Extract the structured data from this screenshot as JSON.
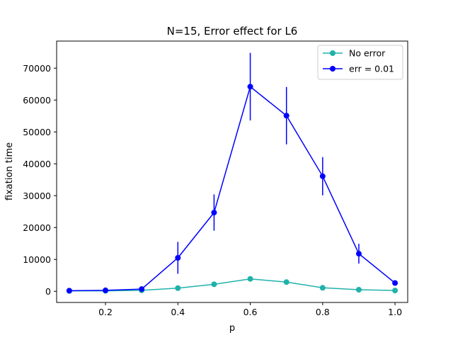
{
  "chart_data": {
    "type": "line",
    "title": "N=15, Error effect for L6",
    "xlabel": "p",
    "ylabel": "fixation time",
    "xlim": [
      0.065,
      1.035
    ],
    "ylim": [
      -3500,
      78500
    ],
    "xticks": [
      0.2,
      0.4,
      0.6,
      0.8,
      1.0
    ],
    "xtick_labels": [
      "0.2",
      "0.4",
      "0.6",
      "0.8",
      "1.0"
    ],
    "yticks": [
      0,
      10000,
      20000,
      30000,
      40000,
      50000,
      60000,
      70000
    ],
    "ytick_labels": [
      "0",
      "10000",
      "20000",
      "30000",
      "40000",
      "50000",
      "60000",
      "70000"
    ],
    "grid": false,
    "legend_position": "top-right",
    "x": [
      0.1,
      0.2,
      0.3,
      0.4,
      0.5,
      0.6,
      0.7,
      0.8,
      0.9,
      1.0
    ],
    "series": [
      {
        "name": "No error",
        "color": "#20b2aa",
        "values": [
          100,
          150,
          300,
          1000,
          2200,
          3900,
          2900,
          1100,
          500,
          250
        ],
        "errors": [
          0,
          0,
          0,
          0,
          0,
          0,
          0,
          0,
          0,
          0
        ]
      },
      {
        "name": "err = 0.01",
        "color": "#0000ff",
        "values": [
          200,
          300,
          700,
          10500,
          24700,
          64200,
          55100,
          36100,
          11800,
          2600
        ],
        "errors": [
          0,
          0,
          0,
          5000,
          5700,
          10600,
          9000,
          6000,
          3100,
          0
        ]
      }
    ]
  }
}
